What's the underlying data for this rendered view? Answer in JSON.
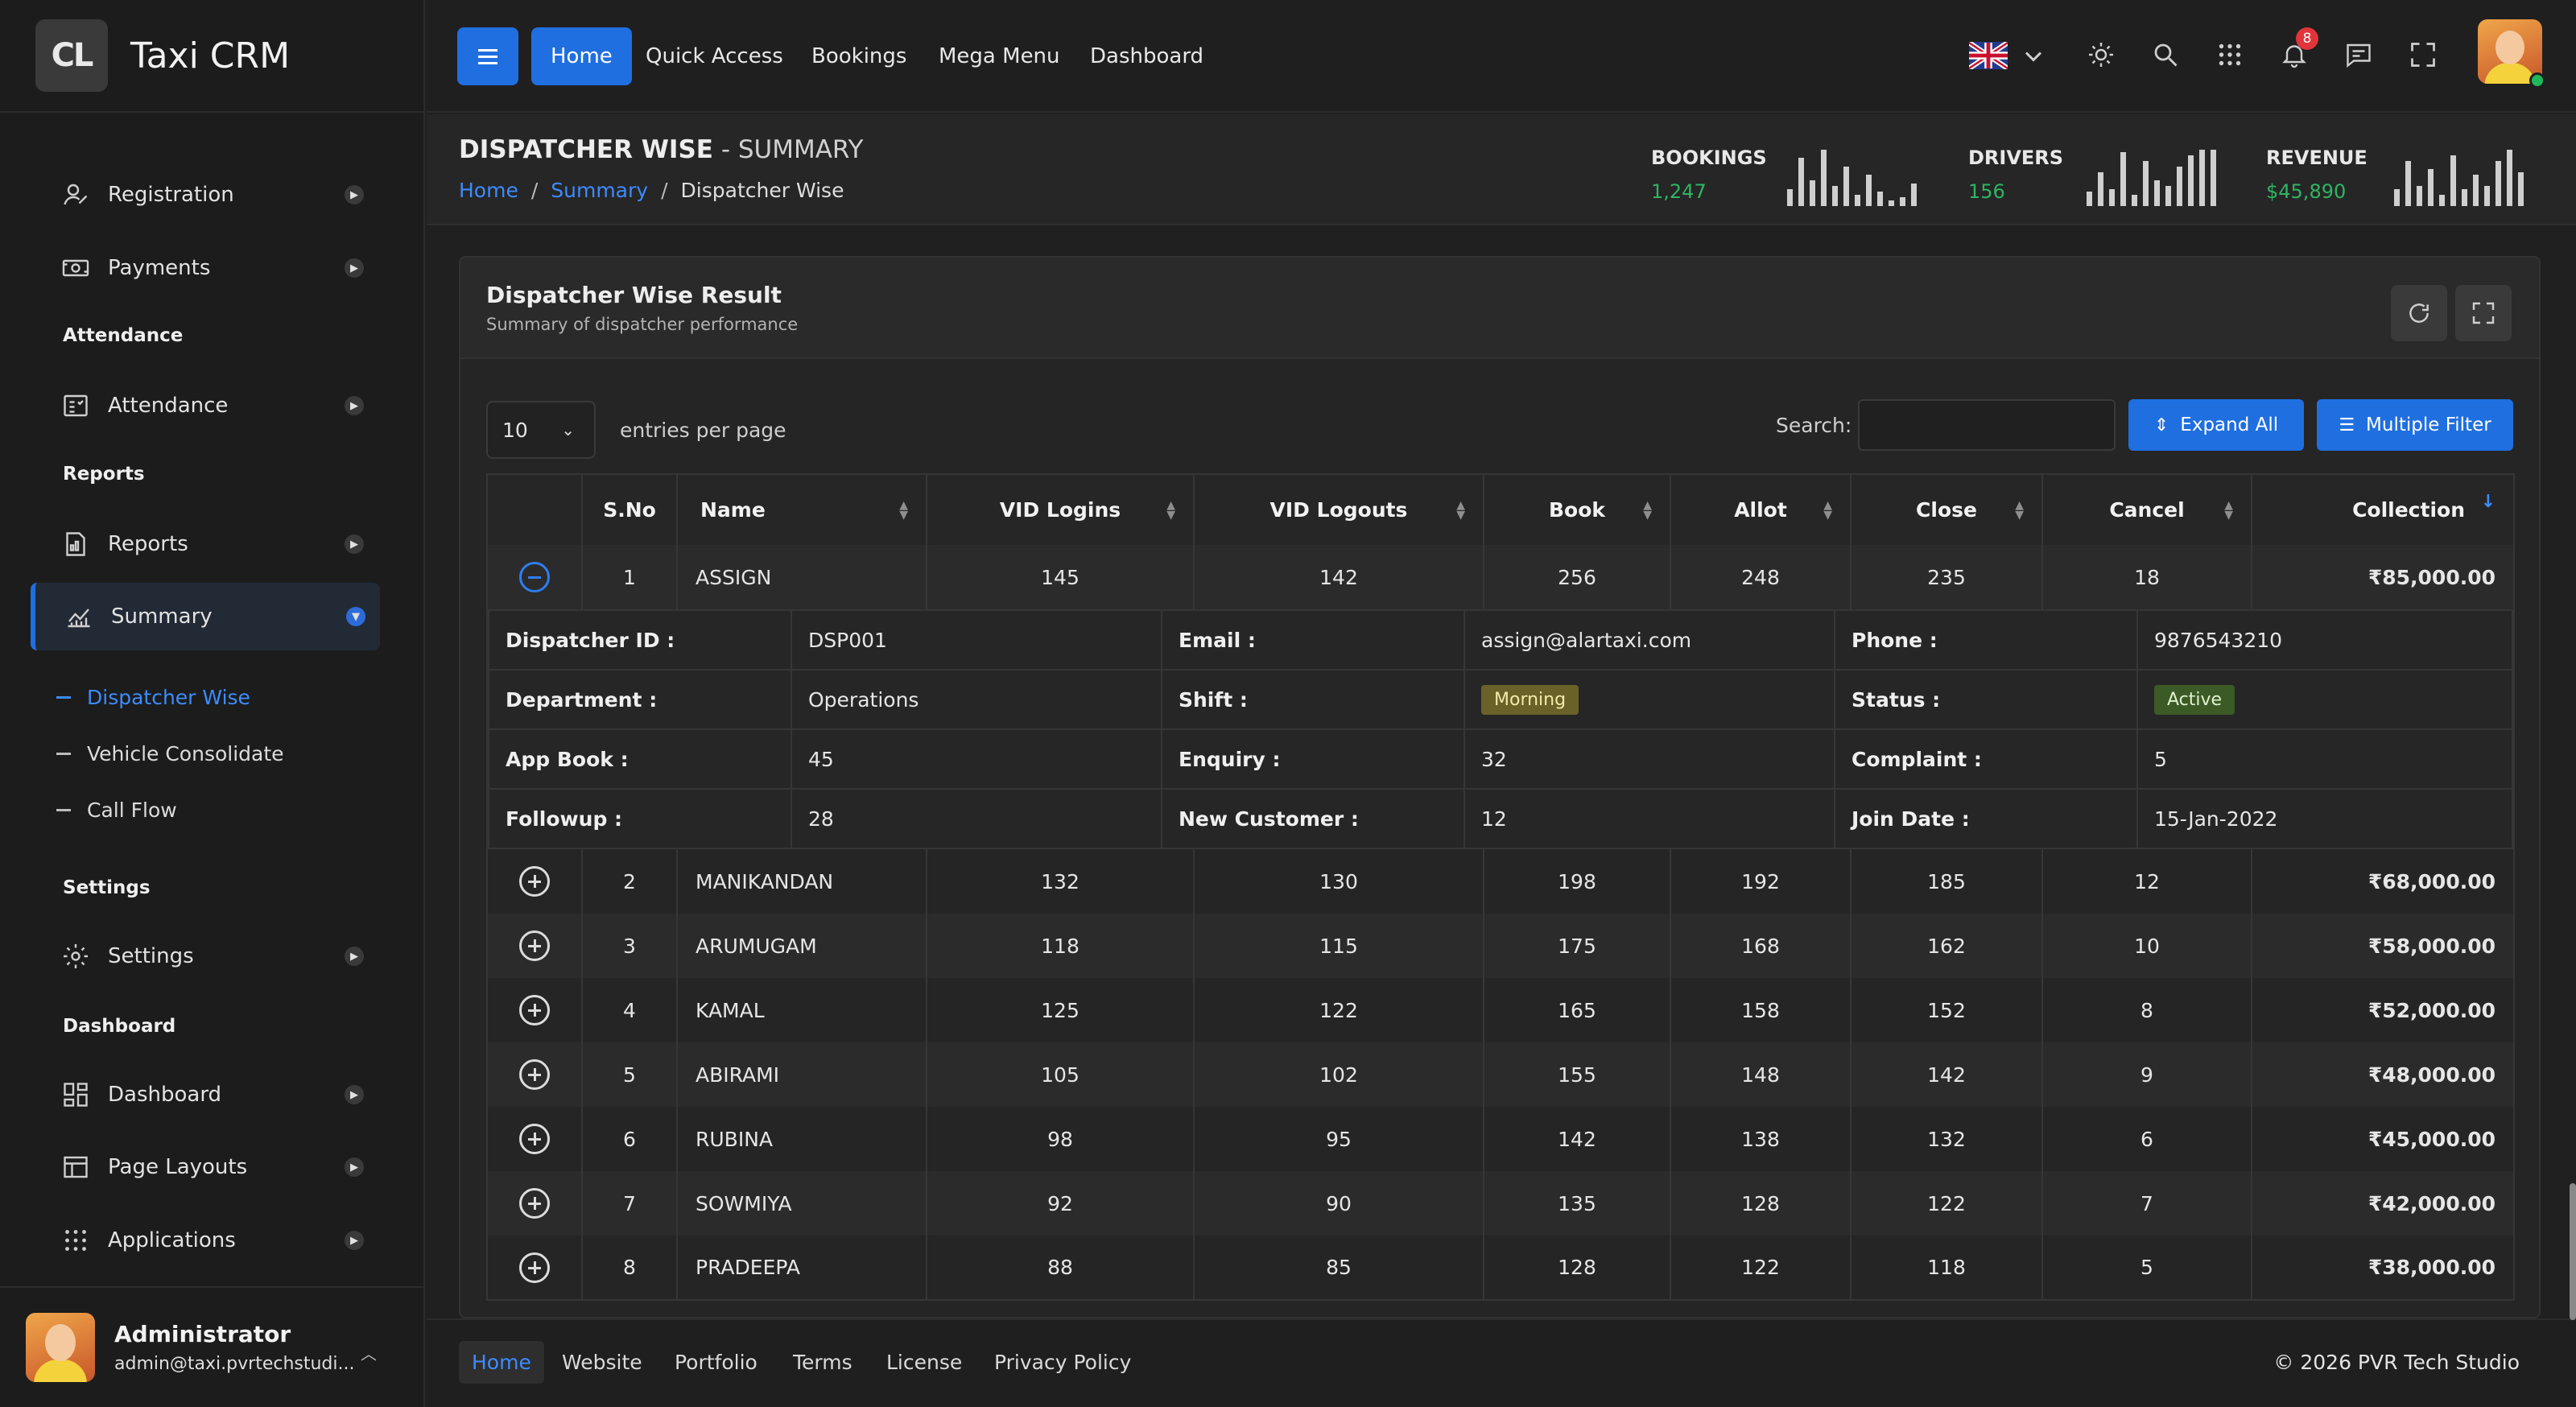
{
  "app": {
    "logo_text": "CL",
    "name": "Taxi CRM"
  },
  "sidebar": {
    "items": [
      {
        "label": "Registration",
        "icon": "user-icon"
      },
      {
        "label": "Payments",
        "icon": "money-icon"
      },
      {
        "label": "Attendance",
        "icon": "attendance-icon"
      },
      {
        "label": "Reports",
        "icon": "report-icon"
      },
      {
        "label": "Summary",
        "icon": "chart-icon"
      },
      {
        "label": "Settings",
        "icon": "gear-icon"
      },
      {
        "label": "Dashboard",
        "icon": "dashboard-icon"
      },
      {
        "label": "Page Layouts",
        "icon": "layout-icon"
      },
      {
        "label": "Applications",
        "icon": "apps-icon"
      }
    ],
    "sections": [
      "Attendance",
      "Reports",
      "Settings",
      "Dashboard"
    ],
    "subitems": [
      "Dispatcher Wise",
      "Vehicle Consolidate",
      "Call Flow"
    ],
    "user": {
      "name": "Administrator",
      "email": "admin@taxi.pvrtechstudi..."
    }
  },
  "header": {
    "nav": [
      "Home",
      "Quick Access",
      "Bookings",
      "Mega Menu",
      "Dashboard"
    ],
    "notification_count": "8"
  },
  "page": {
    "title_bold": "DISPATCHER WISE",
    "title_rest": " - SUMMARY",
    "breadcrumb": [
      "Home",
      "Summary",
      "Dispatcher Wise"
    ],
    "stats": [
      {
        "label": "BOOKINGS",
        "value": "1,247",
        "bars": [
          0.3,
          0.85,
          0.45,
          1.0,
          0.35,
          0.7,
          0.2,
          0.55,
          0.25,
          0.1,
          0.15,
          0.4
        ]
      },
      {
        "label": "DRIVERS",
        "value": "156",
        "bars": [
          0.25,
          0.6,
          0.3,
          0.95,
          0.2,
          0.8,
          0.45,
          0.35,
          0.7,
          0.9,
          1.0,
          1.0
        ]
      },
      {
        "label": "REVENUE",
        "value": "$45,890",
        "bars": [
          0.3,
          0.8,
          0.35,
          0.65,
          0.2,
          0.9,
          0.3,
          0.55,
          0.35,
          0.8,
          1.0,
          0.6
        ]
      }
    ],
    "colors": {
      "accent": "#1f6fe0",
      "positive": "#2fb463"
    }
  },
  "card": {
    "title": "Dispatcher Wise Result",
    "subtitle": "Summary of dispatcher performance",
    "page_length": "10",
    "length_label": "entries per page",
    "search_label": "Search:",
    "search_value": "",
    "expand_label": "Expand All",
    "filter_label": "Multiple Filter"
  },
  "table": {
    "columns": [
      "S.No",
      "Name",
      "VID Logins",
      "VID Logouts",
      "Book",
      "Allot",
      "Close",
      "Cancel",
      "Collection"
    ],
    "rows": [
      [
        "1",
        "ASSIGN",
        "145",
        "142",
        "256",
        "248",
        "235",
        "18",
        "₹85,000.00"
      ],
      [
        "2",
        "MANIKANDAN",
        "132",
        "130",
        "198",
        "192",
        "185",
        "12",
        "₹68,000.00"
      ],
      [
        "3",
        "ARUMUGAM",
        "118",
        "115",
        "175",
        "168",
        "162",
        "10",
        "₹58,000.00"
      ],
      [
        "4",
        "KAMAL",
        "125",
        "122",
        "165",
        "158",
        "152",
        "8",
        "₹52,000.00"
      ],
      [
        "5",
        "ABIRAMI",
        "105",
        "102",
        "155",
        "148",
        "142",
        "9",
        "₹48,000.00"
      ],
      [
        "6",
        "RUBINA",
        "98",
        "95",
        "142",
        "138",
        "132",
        "6",
        "₹45,000.00"
      ],
      [
        "7",
        "SOWMIYA",
        "92",
        "90",
        "135",
        "128",
        "122",
        "7",
        "₹42,000.00"
      ],
      [
        "8",
        "PRADEEPA",
        "88",
        "85",
        "128",
        "122",
        "118",
        "5",
        "₹38,000.00"
      ]
    ],
    "detail": {
      "labels": [
        "Dispatcher ID :",
        "Email :",
        "Phone :",
        "Department :",
        "Shift :",
        "Status :",
        "App Book :",
        "Enquiry :",
        "Complaint :",
        "Followup :",
        "New Customer :",
        "Join Date :"
      ],
      "values": [
        "DSP001",
        "assign@alartaxi.com",
        "9876543210",
        "Operations",
        "Morning",
        "Active",
        "45",
        "32",
        "5",
        "28",
        "12",
        "15-Jan-2022"
      ]
    }
  },
  "footer": {
    "links": [
      "Home",
      "Website",
      "Portfolio",
      "Terms",
      "License",
      "Privacy Policy"
    ],
    "copyright": "© 2026  PVR Tech Studio"
  }
}
